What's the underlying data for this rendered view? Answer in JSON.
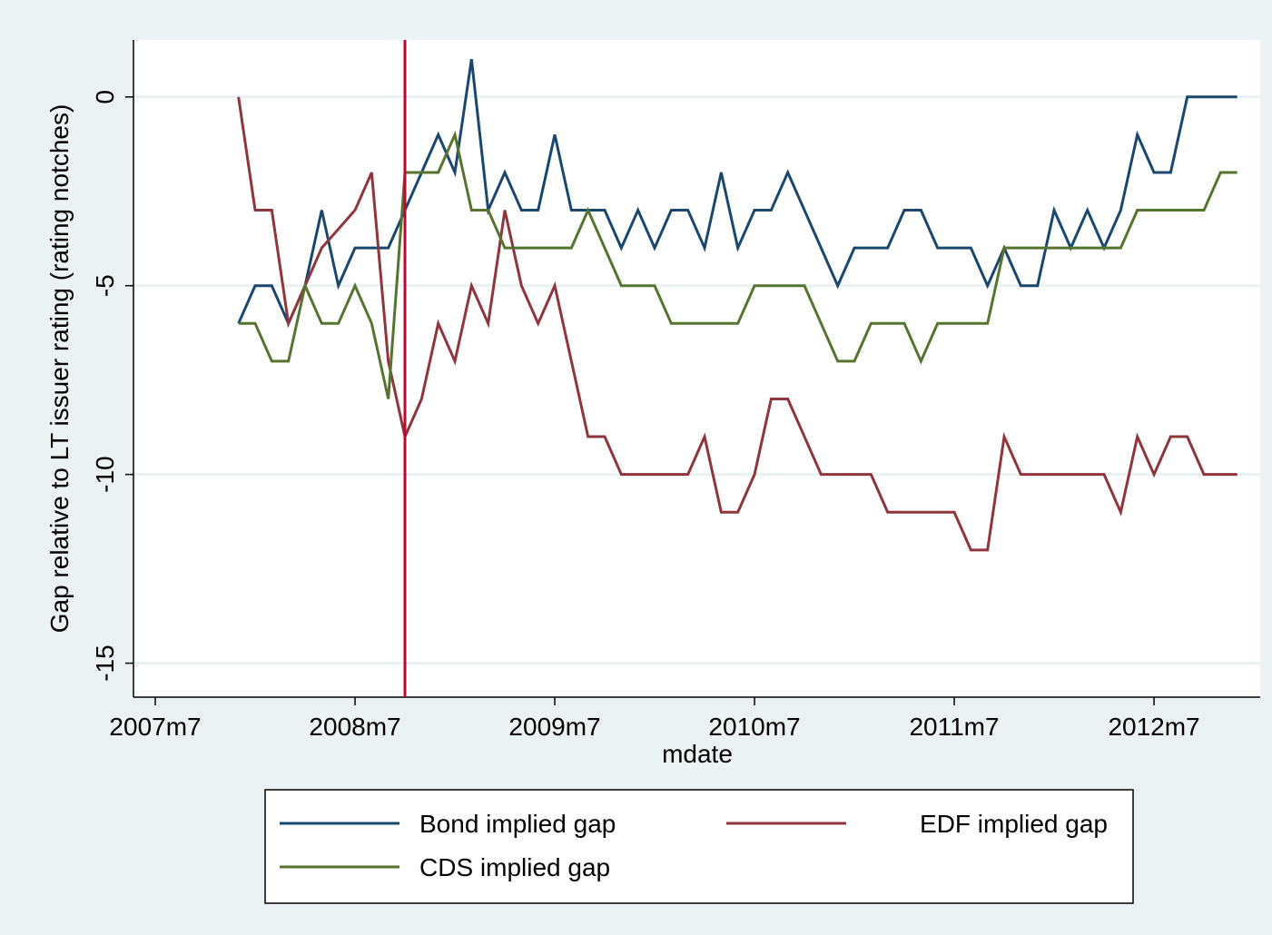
{
  "chart_data": {
    "type": "line",
    "ylabel": "Gap relative to LT issuer rating (rating notches)",
    "xlabel": "mdate",
    "x": [
      575,
      576,
      577,
      578,
      579,
      580,
      581,
      582,
      583,
      584,
      585,
      586,
      587,
      588,
      589,
      590,
      591,
      592,
      593,
      594,
      595,
      596,
      597,
      598,
      599,
      600,
      601,
      602,
      603,
      604,
      605,
      606,
      607,
      608,
      609,
      610,
      611,
      612,
      613,
      614,
      615,
      616,
      617,
      618,
      619,
      620,
      621,
      622,
      623,
      624,
      625,
      626,
      627,
      628,
      629,
      630,
      631,
      632,
      633,
      634,
      635
    ],
    "series": [
      {
        "name": "Bond implied gap",
        "color": "#1a476f",
        "values": [
          -6,
          -5,
          -5,
          -6,
          -5,
          -3,
          -5,
          -4,
          -4,
          -4,
          -3,
          -2,
          -1,
          -2,
          1,
          -3,
          -2,
          -3,
          -3,
          -1,
          -3,
          -3,
          -3,
          -4,
          -3,
          -4,
          -3,
          -3,
          -4,
          -2,
          -4,
          -3,
          -3,
          -2,
          -3,
          -4,
          -5,
          -4,
          -4,
          -4,
          -3,
          -3,
          -4,
          -4,
          -4,
          -5,
          -4,
          -5,
          -5,
          -3,
          -4,
          -3,
          -4,
          -3,
          -1,
          -2,
          -2,
          0,
          0,
          0,
          0
        ]
      },
      {
        "name": "EDF implied gap",
        "color": "#90353b",
        "values": [
          0,
          -3,
          -3,
          -6,
          -5,
          -4,
          -3.5,
          -3,
          -2,
          -7,
          -9,
          -8,
          -6,
          -7,
          -5,
          -6,
          -3,
          -5,
          -6,
          -5,
          -7,
          -9,
          -9,
          -10,
          -10,
          -10,
          -10,
          -10,
          -9,
          -11,
          -11,
          -10,
          -8,
          -8,
          -9,
          -10,
          -10,
          -10,
          -10,
          -11,
          -11,
          -11,
          -11,
          -11,
          -12,
          -12,
          -9,
          -10,
          -10,
          -10,
          -10,
          -10,
          -10,
          -11,
          -9,
          -10,
          -9,
          -9,
          -10,
          -10,
          -10
        ]
      },
      {
        "name": "CDS implied gap",
        "color": "#55752f",
        "values": [
          -6,
          -6,
          -7,
          -7,
          -5,
          -6,
          -6,
          -5,
          -6,
          -8,
          -2,
          -2,
          -2,
          -1,
          -3,
          -3,
          -4,
          -4,
          -4,
          -4,
          -4,
          -3,
          -4,
          -5,
          -5,
          -5,
          -6,
          -6,
          -6,
          -6,
          -6,
          -5,
          -5,
          -5,
          -5,
          -6,
          -7,
          -7,
          -6,
          -6,
          -6,
          -7,
          -6,
          -6,
          -6,
          -6,
          -4,
          -4,
          -4,
          -4,
          -4,
          -4,
          -4,
          -4,
          -3,
          -3,
          -3,
          -3,
          -3,
          -2,
          -2
        ]
      }
    ],
    "xline": {
      "value": 585,
      "color": "#c10534"
    },
    "xlim": [
      568.69,
      636.38
    ],
    "xticks": [
      {
        "value": 570,
        "label": "2007m7"
      },
      {
        "value": 582,
        "label": "2008m7"
      },
      {
        "value": 594,
        "label": "2009m7"
      },
      {
        "value": 606,
        "label": "2010m7"
      },
      {
        "value": 618,
        "label": "2011m7"
      },
      {
        "value": 630,
        "label": "2012m7"
      }
    ],
    "ylim": [
      -15.9,
      1.51
    ],
    "yticks": [
      0,
      -5,
      -10,
      -15
    ],
    "grid": true,
    "legend": "bottom"
  }
}
